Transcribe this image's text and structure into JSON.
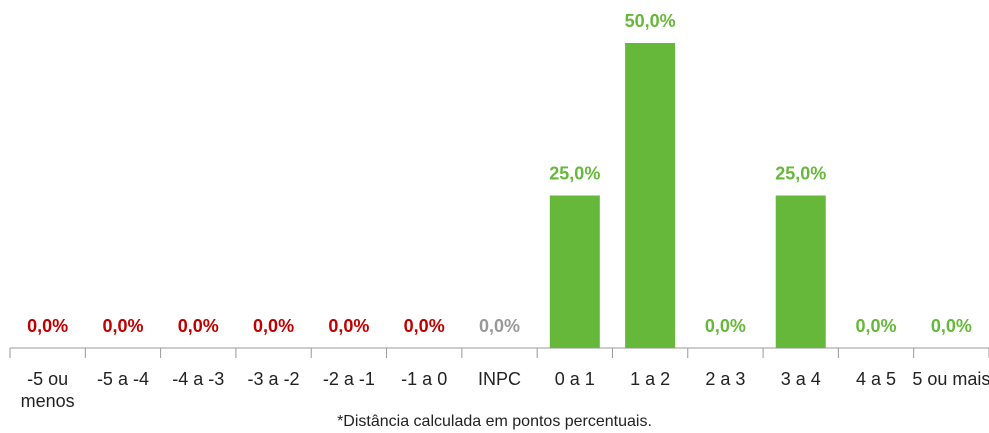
{
  "chart_data": {
    "type": "bar",
    "categories": [
      "-5 ou menos",
      "-5 a -4",
      "-4 a -3",
      "-3 a -2",
      "-2 a -1",
      "-1 a 0",
      "INPC",
      "0 a 1",
      "1 a 2",
      "2 a 3",
      "3 a 4",
      "4 a 5",
      "5 ou mais"
    ],
    "values": [
      0,
      0,
      0,
      0,
      0,
      0,
      0,
      25,
      50,
      0,
      25,
      0,
      0
    ],
    "value_labels": [
      "0,0%",
      "0,0%",
      "0,0%",
      "0,0%",
      "0,0%",
      "0,0%",
      "0,0%",
      "25,0%",
      "50,0%",
      "0,0%",
      "25,0%",
      "0,0%",
      "0,0%"
    ],
    "colors": [
      "#c00000",
      "#c00000",
      "#c00000",
      "#c00000",
      "#c00000",
      "#c00000",
      "#999999",
      "#66b83a",
      "#66b83a",
      "#66b83a",
      "#66b83a",
      "#66b83a",
      "#66b83a"
    ],
    "ylim": [
      0,
      50
    ],
    "footnote": "*Distância calculada em pontos percentuais."
  }
}
